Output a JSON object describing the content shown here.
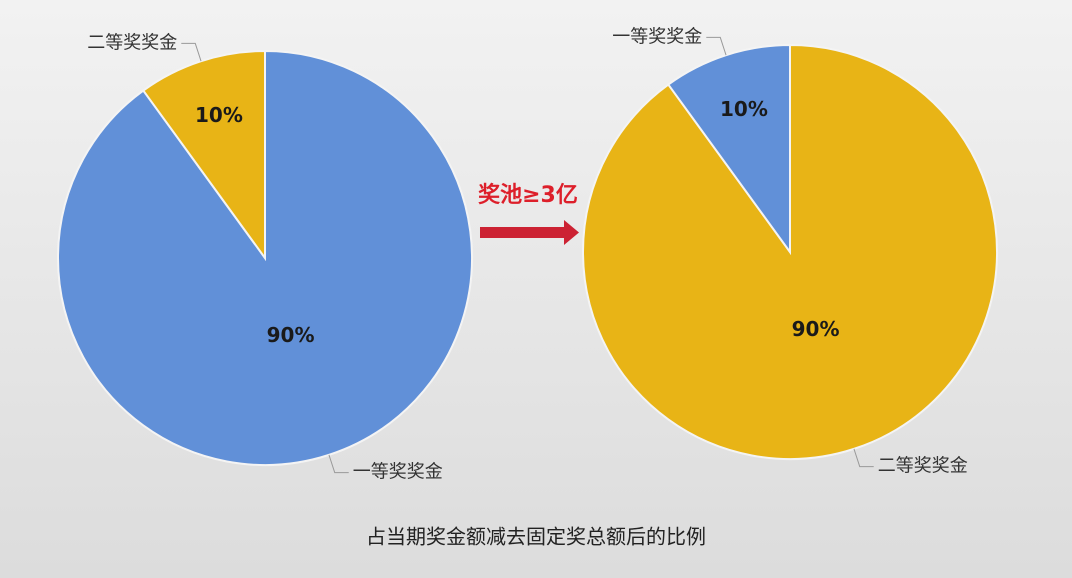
{
  "chart_data": [
    {
      "type": "pie",
      "categories": [
        "一等奖奖金",
        "二等奖奖金"
      ],
      "values": [
        90,
        10
      ],
      "value_labels": [
        "90%",
        "10%"
      ],
      "colors": [
        "#6190d8",
        "#e8b416"
      ]
    },
    {
      "type": "pie",
      "categories": [
        "二等奖奖金",
        "一等奖奖金"
      ],
      "values": [
        90,
        10
      ],
      "value_labels": [
        "90%",
        "10%"
      ],
      "colors": [
        "#e8b416",
        "#6190d8"
      ]
    }
  ],
  "arrow_label": "奖池≥3亿",
  "caption": "占当期奖金额减去固定奖总额后的比例"
}
